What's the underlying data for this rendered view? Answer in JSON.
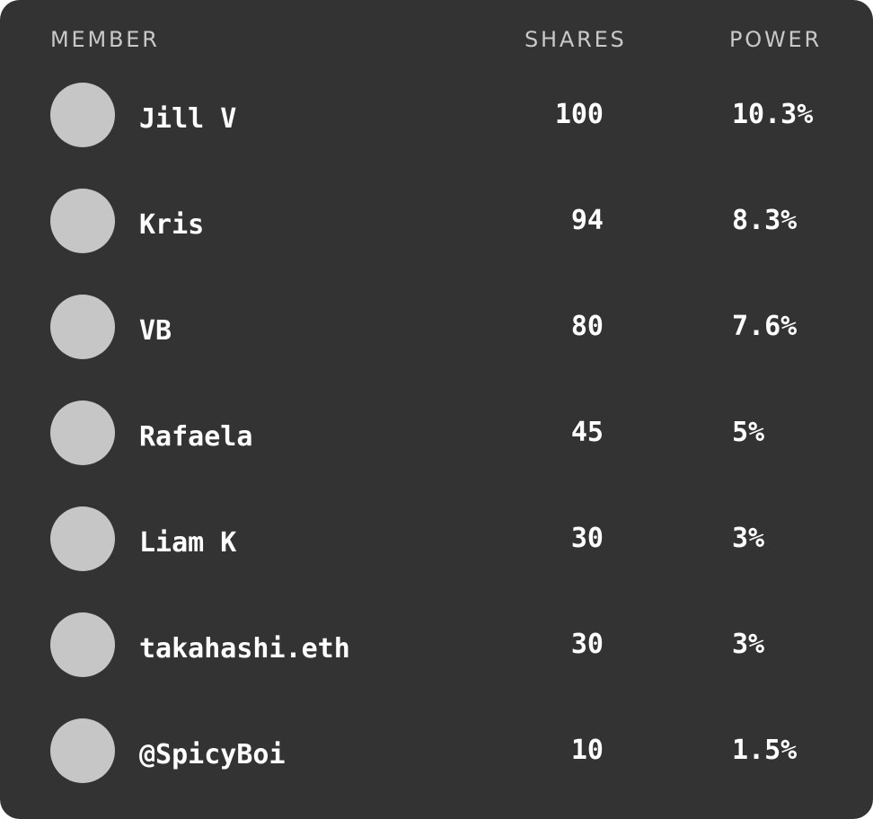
{
  "header": {
    "member": "MEMBER",
    "shares": "SHARES",
    "power": "POWER"
  },
  "members": [
    {
      "name": "Jill V",
      "shares": "100",
      "power": "10.3%"
    },
    {
      "name": "Kris",
      "shares": "94",
      "power": "8.3%"
    },
    {
      "name": "VB",
      "shares": "80",
      "power": "7.6%"
    },
    {
      "name": "Rafaela",
      "shares": "45",
      "power": "5%"
    },
    {
      "name": "Liam K",
      "shares": "30",
      "power": "3%"
    },
    {
      "name": "takahashi.eth",
      "shares": "30",
      "power": "3%"
    },
    {
      "name": "@SpicyBoi",
      "shares": "10",
      "power": "1.5%"
    }
  ],
  "colors": {
    "background": "#333333",
    "avatar": "#c6c6c6",
    "header_text": "#c9c9c9",
    "text": "#ffffff"
  }
}
